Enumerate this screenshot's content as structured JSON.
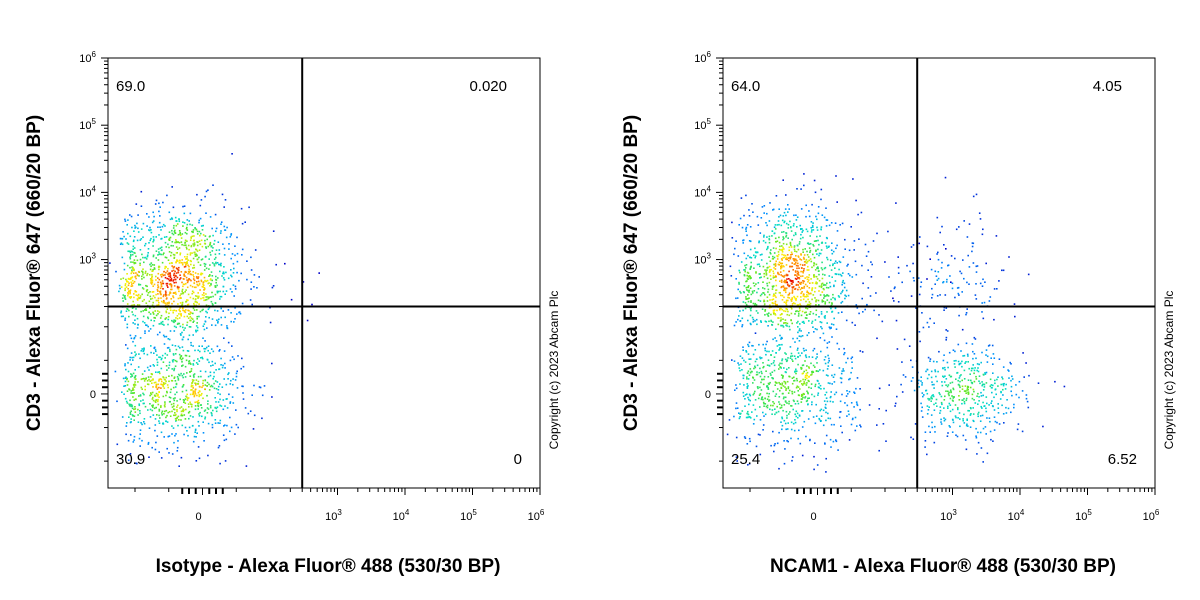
{
  "chart_data": [
    {
      "type": "scatter",
      "subtype": "flow-cytometry-density-dot-plot",
      "xlabel": "Isotype - Alexa Fluor® 488 (530/30 BP)",
      "ylabel": "CD3 - Alexa Fluor® 647 (660/20 BP)",
      "x_scale": "biexponential",
      "y_scale": "biexponential",
      "x_ticks": [
        {
          "value": 0,
          "base": "0",
          "exp": ""
        },
        {
          "value": 1000,
          "base": "10",
          "exp": "3"
        },
        {
          "value": 10000,
          "base": "10",
          "exp": "4"
        },
        {
          "value": 100000,
          "base": "10",
          "exp": "5"
        },
        {
          "value": 1000000,
          "base": "10",
          "exp": "6"
        }
      ],
      "y_ticks": [
        {
          "value": 0,
          "base": "0",
          "exp": ""
        },
        {
          "value": 1000,
          "base": "10",
          "exp": "3"
        },
        {
          "value": 10000,
          "base": "10",
          "exp": "4"
        },
        {
          "value": 100000,
          "base": "10",
          "exp": "5"
        },
        {
          "value": 1000000,
          "base": "10",
          "exp": "6"
        }
      ],
      "gate": {
        "x": 300,
        "y": 200
      },
      "quadrants": {
        "upper_left": "69.0",
        "upper_right": "0.020",
        "lower_left": "30.9",
        "lower_right": "0"
      },
      "populations": [
        {
          "x": -40,
          "y": 500,
          "spread_x": 50,
          "spread_y": 0.55,
          "count": 1300
        },
        {
          "x": -40,
          "y": 0,
          "spread_x": 50,
          "spread_y": 40,
          "count": 700
        }
      ],
      "watermark": "Copyright (c) 2023 Abcam Plc"
    },
    {
      "type": "scatter",
      "subtype": "flow-cytometry-density-dot-plot",
      "xlabel": "NCAM1 - Alexa Fluor® 488 (530/30 BP)",
      "ylabel": "CD3 - Alexa Fluor® 647 (660/20 BP)",
      "x_scale": "biexponential",
      "y_scale": "biexponential",
      "x_ticks": [
        {
          "value": 0,
          "base": "0",
          "exp": ""
        },
        {
          "value": 1000,
          "base": "10",
          "exp": "3"
        },
        {
          "value": 10000,
          "base": "10",
          "exp": "4"
        },
        {
          "value": 100000,
          "base": "10",
          "exp": "5"
        },
        {
          "value": 1000000,
          "base": "10",
          "exp": "6"
        }
      ],
      "y_ticks": [
        {
          "value": 0,
          "base": "0",
          "exp": ""
        },
        {
          "value": 1000,
          "base": "10",
          "exp": "3"
        },
        {
          "value": 10000,
          "base": "10",
          "exp": "4"
        },
        {
          "value": 100000,
          "base": "10",
          "exp": "5"
        },
        {
          "value": 1000000,
          "base": "10",
          "exp": "6"
        }
      ],
      "gate": {
        "x": 300,
        "y": 200
      },
      "quadrants": {
        "upper_left": "64.0",
        "upper_right": "4.05",
        "lower_left": "25.4",
        "lower_right": "6.52"
      },
      "populations": [
        {
          "x": -40,
          "y": 450,
          "spread_x": 50,
          "spread_y": 0.55,
          "count": 1200
        },
        {
          "x": -40,
          "y": 0,
          "spread_x": 50,
          "spread_y": 40,
          "count": 550
        },
        {
          "x": 1500,
          "y": 0,
          "spread_x": 0.45,
          "spread_y": 35,
          "count": 450
        },
        {
          "x": 900,
          "y": 500,
          "spread_x": 0.5,
          "spread_y": 0.5,
          "count": 160
        }
      ],
      "watermark": "Copyright (c) 2023 Abcam Plc"
    }
  ]
}
